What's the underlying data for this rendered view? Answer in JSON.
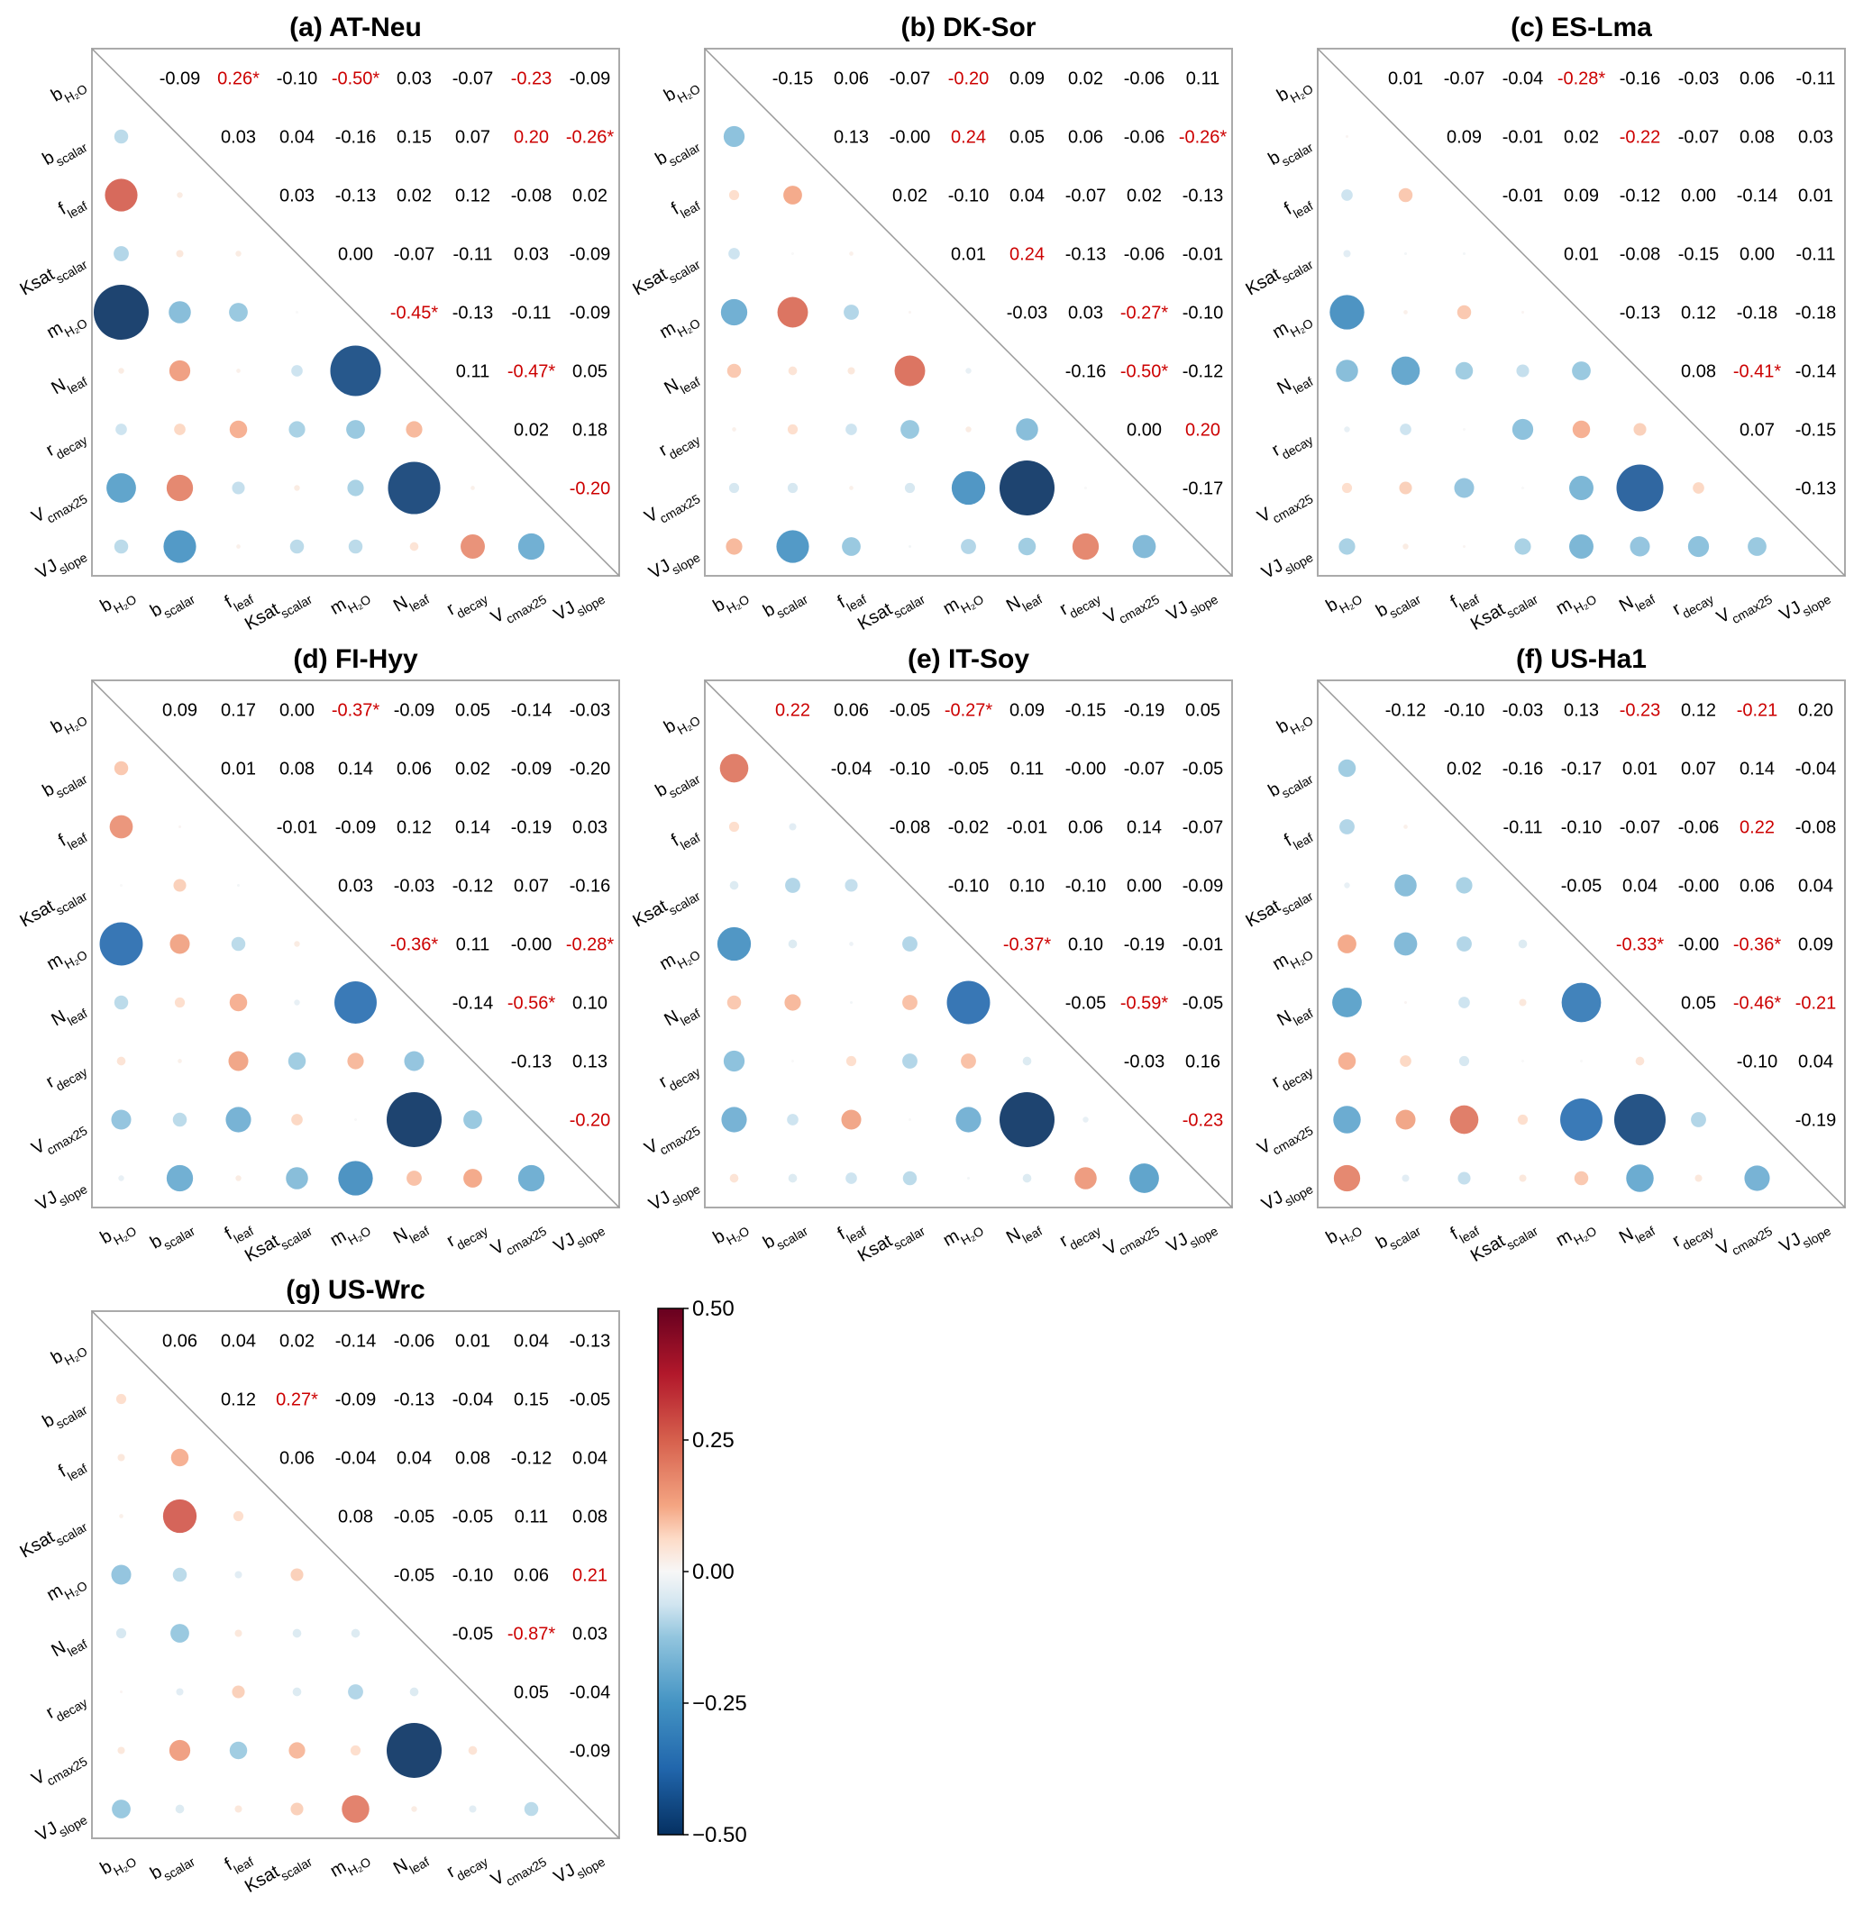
{
  "chart_data": {
    "type": "heatmap",
    "variables": [
      {
        "base": "b",
        "sub": "H₂O"
      },
      {
        "base": "b",
        "sub": "scalar"
      },
      {
        "base": "f",
        "sub": "leaf"
      },
      {
        "base": "Ksat",
        "sub": "scalar"
      },
      {
        "base": "m",
        "sub": "H₂O"
      },
      {
        "base": "N",
        "sub": "leaf"
      },
      {
        "base": "r",
        "sub": "decay"
      },
      {
        "base": "V",
        "sub": "cmax25"
      },
      {
        "base": "VJ",
        "sub": "slope"
      }
    ],
    "colorbar": {
      "range": [
        -0.5,
        0.5
      ],
      "ticks": [
        "0.50",
        "0.25",
        "0.00",
        "−0.25",
        "−0.50"
      ],
      "colormap": "RdBu"
    },
    "highlight_color": "#cc0000",
    "normal_color": "#000000",
    "panels": [
      {
        "title": "(a) AT-Neu",
        "upper": [
          [
            "-0.09",
            "0.26*",
            "-0.10",
            "-0.50*",
            "0.03",
            "-0.07",
            "-0.23",
            "-0.09"
          ],
          [
            "0.03",
            "0.04",
            "-0.16",
            "0.15",
            "0.07",
            "0.20",
            "-0.26*"
          ],
          [
            "0.03",
            "-0.13",
            "0.02",
            "0.12",
            "-0.08",
            "0.02"
          ],
          [
            "0.00",
            "-0.07",
            "-0.11",
            "0.03",
            "-0.09"
          ],
          [
            "-0.45*",
            "-0.13",
            "-0.11",
            "-0.09"
          ],
          [
            "0.11",
            "-0.47*",
            "0.05"
          ],
          [
            "0.02",
            "0.18"
          ],
          [
            "-0.20"
          ]
        ],
        "highlight": [
          [
            0,
            2
          ],
          [
            0,
            4
          ],
          [
            0,
            7
          ],
          [
            1,
            7
          ],
          [
            1,
            8
          ],
          [
            4,
            5
          ],
          [
            5,
            7
          ],
          [
            7,
            8
          ]
        ]
      },
      {
        "title": "(b) DK-Sor",
        "upper": [
          [
            "-0.15",
            "0.06",
            "-0.07",
            "-0.20",
            "0.09",
            "0.02",
            "-0.06",
            "0.11"
          ],
          [
            "0.13",
            "-0.00",
            "0.24",
            "0.05",
            "0.06",
            "-0.06",
            "-0.26*"
          ],
          [
            "0.02",
            "-0.10",
            "0.04",
            "-0.07",
            "0.02",
            "-0.13"
          ],
          [
            "0.01",
            "0.24",
            "-0.13",
            "-0.06",
            "-0.01"
          ],
          [
            "-0.03",
            "0.03",
            "-0.27*",
            "-0.10"
          ],
          [
            "-0.16",
            "-0.50*",
            "-0.12"
          ],
          [
            "0.00",
            "0.20"
          ],
          [
            "-0.17"
          ]
        ],
        "highlight": [
          [
            0,
            4
          ],
          [
            1,
            4
          ],
          [
            1,
            8
          ],
          [
            3,
            5
          ],
          [
            4,
            7
          ],
          [
            5,
            7
          ],
          [
            6,
            8
          ]
        ]
      },
      {
        "title": "(c) ES-Lma",
        "upper": [
          [
            "0.01",
            "-0.07",
            "-0.04",
            "-0.28*",
            "-0.16",
            "-0.03",
            "0.06",
            "-0.11"
          ],
          [
            "0.09",
            "-0.01",
            "0.02",
            "-0.22",
            "-0.07",
            "0.08",
            "0.03"
          ],
          [
            "-0.01",
            "0.09",
            "-0.12",
            "0.00",
            "-0.14",
            "0.01"
          ],
          [
            "0.01",
            "-0.08",
            "-0.15",
            "0.00",
            "-0.11"
          ],
          [
            "-0.13",
            "0.12",
            "-0.18",
            "-0.18"
          ],
          [
            "0.08",
            "-0.41*",
            "-0.14"
          ],
          [
            "0.07",
            "-0.15"
          ],
          [
            "-0.13"
          ]
        ],
        "highlight": [
          [
            0,
            4
          ],
          [
            1,
            5
          ],
          [
            5,
            7
          ]
        ]
      },
      {
        "title": "(d) FI-Hyy",
        "upper": [
          [
            "0.09",
            "0.17",
            "0.00",
            "-0.37*",
            "-0.09",
            "0.05",
            "-0.14",
            "-0.03"
          ],
          [
            "0.01",
            "0.08",
            "0.14",
            "0.06",
            "0.02",
            "-0.09",
            "-0.20"
          ],
          [
            "-0.01",
            "-0.09",
            "0.12",
            "0.14",
            "-0.19",
            "0.03"
          ],
          [
            "0.03",
            "-0.03",
            "-0.12",
            "0.07",
            "-0.16"
          ],
          [
            "-0.36*",
            "0.11",
            "-0.00",
            "-0.28*"
          ],
          [
            "-0.14",
            "-0.56*",
            "0.10"
          ],
          [
            "-0.13",
            "0.13"
          ],
          [
            "-0.20"
          ]
        ],
        "highlight": [
          [
            0,
            4
          ],
          [
            4,
            5
          ],
          [
            4,
            8
          ],
          [
            5,
            7
          ],
          [
            7,
            8
          ]
        ]
      },
      {
        "title": "(e) IT-Soy",
        "upper": [
          [
            "0.22",
            "0.06",
            "-0.05",
            "-0.27*",
            "0.09",
            "-0.15",
            "-0.19",
            "0.05"
          ],
          [
            "-0.04",
            "-0.10",
            "-0.05",
            "0.11",
            "-0.00",
            "-0.07",
            "-0.05"
          ],
          [
            "-0.08",
            "-0.02",
            "-0.01",
            "0.06",
            "0.14",
            "-0.07"
          ],
          [
            "-0.10",
            "0.10",
            "-0.10",
            "0.00",
            "-0.09"
          ],
          [
            "-0.37*",
            "0.10",
            "-0.19",
            "-0.01"
          ],
          [
            "-0.05",
            "-0.59*",
            "-0.05"
          ],
          [
            "-0.03",
            "0.16"
          ],
          [
            "-0.23"
          ]
        ],
        "highlight": [
          [
            0,
            1
          ],
          [
            0,
            4
          ],
          [
            4,
            5
          ],
          [
            5,
            7
          ],
          [
            7,
            8
          ]
        ]
      },
      {
        "title": "(f) US-Ha1",
        "upper": [
          [
            "-0.12",
            "-0.10",
            "-0.03",
            "0.13",
            "-0.23",
            "0.12",
            "-0.21",
            "0.20"
          ],
          [
            "0.02",
            "-0.16",
            "-0.17",
            "0.01",
            "0.07",
            "0.14",
            "-0.04"
          ],
          [
            "-0.11",
            "-0.10",
            "-0.07",
            "-0.06",
            "0.22",
            "-0.08"
          ],
          [
            "-0.05",
            "0.04",
            "-0.00",
            "0.06",
            "0.04"
          ],
          [
            "-0.33*",
            "-0.00",
            "-0.36*",
            "0.09"
          ],
          [
            "0.05",
            "-0.46*",
            "-0.21"
          ],
          [
            "-0.10",
            "0.04"
          ],
          [
            "-0.19"
          ]
        ],
        "highlight": [
          [
            0,
            5
          ],
          [
            0,
            7
          ],
          [
            2,
            7
          ],
          [
            4,
            5
          ],
          [
            4,
            7
          ],
          [
            5,
            7
          ],
          [
            5,
            8
          ]
        ]
      },
      {
        "title": "(g) US-Wrc",
        "upper": [
          [
            "0.06",
            "0.04",
            "0.02",
            "-0.14",
            "-0.06",
            "0.01",
            "0.04",
            "-0.13"
          ],
          [
            "0.12",
            "0.27*",
            "-0.09",
            "-0.13",
            "-0.04",
            "0.15",
            "-0.05"
          ],
          [
            "0.06",
            "-0.04",
            "0.04",
            "0.08",
            "-0.12",
            "0.04"
          ],
          [
            "0.08",
            "-0.05",
            "-0.05",
            "0.11",
            "0.08"
          ],
          [
            "-0.05",
            "-0.10",
            "0.06",
            "0.21"
          ],
          [
            "-0.05",
            "-0.87*",
            "0.03"
          ],
          [
            "0.05",
            "-0.04"
          ],
          [
            "-0.09"
          ]
        ],
        "highlight": [
          [
            1,
            3
          ],
          [
            4,
            8
          ],
          [
            5,
            7
          ]
        ]
      }
    ]
  }
}
